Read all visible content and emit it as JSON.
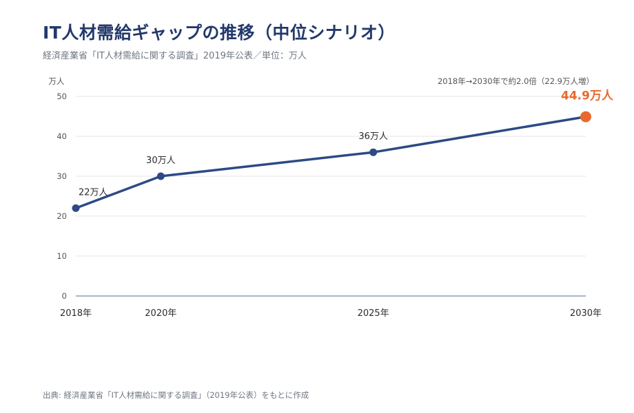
{
  "header": {
    "title": "IT人材需給ギャップの推移（中位シナリオ）",
    "subtitle": "経済産業省「IT人材需給に関する調査」2019年公表／単位：万人"
  },
  "footer": {
    "source": "出典: 経済産業省「IT人材需給に関する調査」（2019年公表）をもとに作成"
  },
  "colors": {
    "line": "#2d4a86",
    "highlight": "#e8692e",
    "grid": "#e6e6e6",
    "axis": "#8a9bb5",
    "tick_text": "#555555",
    "label_text": "#2b2b2b"
  },
  "chart_data": {
    "type": "line",
    "x": [
      2018,
      2020,
      2025,
      2030
    ],
    "x_tick_labels": [
      "2018年",
      "2020年",
      "2025年",
      "2030年"
    ],
    "series": [
      {
        "values": [
          22,
          30,
          36,
          44.9
        ]
      }
    ],
    "data_labels": [
      "22万人",
      "30万人",
      "36万人",
      "44.9万人"
    ],
    "y_unit_label": "万人",
    "ylim": [
      0,
      50
    ],
    "yticks": [
      0,
      10,
      20,
      30,
      40,
      50
    ],
    "grid": true,
    "annotation": "2018年→2030年で約2.0倍（22.9万人増）",
    "highlight_last_point": true
  }
}
